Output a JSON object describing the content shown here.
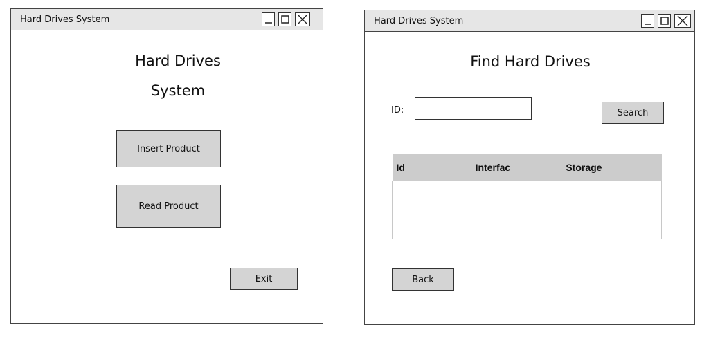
{
  "main_window": {
    "title": "Hard Drives System",
    "heading_line1": "Hard Drives",
    "heading_line2": "System",
    "insert_label": "Insert Product",
    "read_label": "Read Product",
    "exit_label": "Exit"
  },
  "find_window": {
    "title": "Hard Drives System",
    "heading": "Find Hard Drives",
    "id_label": "ID:",
    "id_value": "",
    "search_label": "Search",
    "table": {
      "columns": [
        "Id",
        "Interfac",
        "Storage"
      ],
      "rows": [
        [
          "",
          "",
          ""
        ],
        [
          "",
          "",
          ""
        ]
      ]
    },
    "back_label": "Back"
  },
  "window_controls": {
    "minimize_icon": "minimize-icon",
    "maximize_icon": "maximize-icon",
    "close_icon": "close-icon"
  }
}
